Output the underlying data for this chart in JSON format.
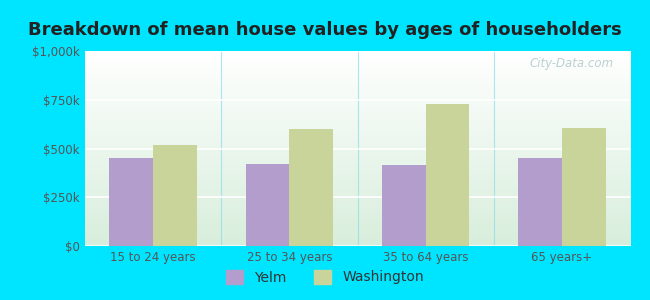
{
  "title": "Breakdown of mean house values by ages of householders",
  "categories": [
    "15 to 24 years",
    "25 to 34 years",
    "35 to 64 years",
    "65 years+"
  ],
  "yelm_values": [
    450000,
    420000,
    415000,
    450000
  ],
  "washington_values": [
    520000,
    600000,
    730000,
    605000
  ],
  "yelm_color": "#b39dcc",
  "washington_color": "#c8d49a",
  "ylim": [
    0,
    1000000
  ],
  "yticks": [
    0,
    250000,
    500000,
    750000,
    1000000
  ],
  "ytick_labels": [
    "$0",
    "$250k",
    "$500k",
    "$750k",
    "$1,000k"
  ],
  "legend_yelm": "Yelm",
  "legend_washington": "Washington",
  "background_outer": "#00e5ff",
  "watermark": "City-Data.com",
  "title_fontsize": 13,
  "tick_fontsize": 8.5,
  "legend_fontsize": 10
}
